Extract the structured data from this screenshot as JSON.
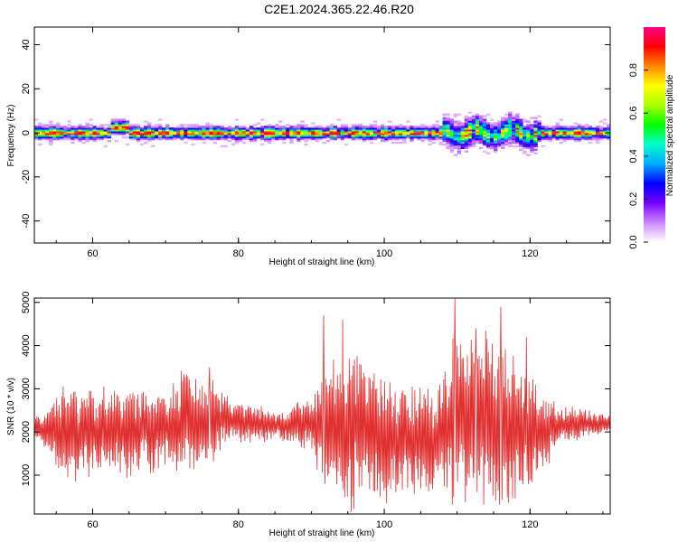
{
  "title": "C2E1.2024.365.22.46.R20",
  "chart_data": [
    {
      "type": "heatmap",
      "xlabel": "Height of straight line (km)",
      "ylabel": "Frequency (Hz)",
      "xlim": [
        52,
        131
      ],
      "ylim": [
        -50,
        48
      ],
      "xticks": [
        60,
        80,
        100,
        120
      ],
      "yticks": [
        40,
        20,
        0,
        -20,
        -40
      ],
      "colorbar": {
        "label": "Normalized spectral amplitude",
        "range": [
          0,
          1
        ],
        "ticks": [
          "0.0",
          "0.2",
          "0.4",
          "0.6",
          "0.8"
        ],
        "colors": [
          "#ffffff",
          "#cc88ff",
          "#7700ff",
          "#0000ff",
          "#00aaff",
          "#00ffcc",
          "#00ff00",
          "#aaff00",
          "#ffff00",
          "#ff8800",
          "#ff0000",
          "#ff0088"
        ]
      },
      "band": {
        "center_hz": 0,
        "half_width_hz_normal": 2,
        "half_width_hz_wide": 6,
        "wide_region_km": [
          108,
          121
        ]
      }
    },
    {
      "type": "line",
      "xlabel": "Height of straight line (km)",
      "ylabel": "SNR (10 * v/v)",
      "xlim": [
        52,
        131
      ],
      "ylim": [
        100,
        5100
      ],
      "xticks": [
        60,
        80,
        100,
        120
      ],
      "yticks": [
        5000,
        4000,
        3000,
        2000,
        1000
      ],
      "color": "#e03030",
      "envelope": [
        {
          "x": 52,
          "lo": 1900,
          "hi": 2400
        },
        {
          "x": 54,
          "lo": 1500,
          "hi": 2500
        },
        {
          "x": 56,
          "lo": 900,
          "hi": 3000
        },
        {
          "x": 60,
          "lo": 1000,
          "hi": 3000
        },
        {
          "x": 64,
          "lo": 1000,
          "hi": 3000
        },
        {
          "x": 68,
          "lo": 1100,
          "hi": 3000
        },
        {
          "x": 70,
          "lo": 1200,
          "hi": 2900
        },
        {
          "x": 72,
          "lo": 1100,
          "hi": 3300
        },
        {
          "x": 76,
          "lo": 1200,
          "hi": 3300
        },
        {
          "x": 78,
          "lo": 1700,
          "hi": 2800
        },
        {
          "x": 82,
          "lo": 1800,
          "hi": 2600
        },
        {
          "x": 86,
          "lo": 1800,
          "hi": 2500
        },
        {
          "x": 90,
          "lo": 1600,
          "hi": 2800
        },
        {
          "x": 92,
          "lo": 400,
          "hi": 3500
        },
        {
          "x": 96,
          "lo": 300,
          "hi": 4000
        },
        {
          "x": 100,
          "lo": 500,
          "hi": 3300
        },
        {
          "x": 104,
          "lo": 600,
          "hi": 3000
        },
        {
          "x": 107,
          "lo": 600,
          "hi": 3000
        },
        {
          "x": 110,
          "lo": 300,
          "hi": 4300
        },
        {
          "x": 114,
          "lo": 300,
          "hi": 4200
        },
        {
          "x": 118,
          "lo": 400,
          "hi": 3900
        },
        {
          "x": 121,
          "lo": 900,
          "hi": 3000
        },
        {
          "x": 124,
          "lo": 1700,
          "hi": 2600
        },
        {
          "x": 128,
          "lo": 1900,
          "hi": 2500
        },
        {
          "x": 131,
          "lo": 2000,
          "hi": 2400
        }
      ],
      "peaks": [
        {
          "x": 91.7,
          "y": 4700
        },
        {
          "x": 94.3,
          "y": 4600
        },
        {
          "x": 109.7,
          "y": 5100
        },
        {
          "x": 112.6,
          "y": 4400
        },
        {
          "x": 116.0,
          "y": 4900
        },
        {
          "x": 76.0,
          "y": 3500
        },
        {
          "x": 119.5,
          "y": 4200
        }
      ]
    }
  ]
}
